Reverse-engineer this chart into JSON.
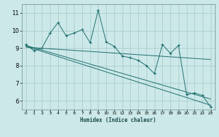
{
  "xlabel": "Humidex (Indice chaleur)",
  "bg_color": "#cce8e8",
  "grid_color": "#aacccc",
  "line_color": "#1a6b6b",
  "xlim": [
    -0.5,
    23.5
  ],
  "ylim": [
    5.5,
    11.5
  ],
  "xticks": [
    0,
    1,
    2,
    3,
    4,
    5,
    6,
    7,
    8,
    9,
    10,
    11,
    12,
    13,
    14,
    15,
    16,
    17,
    18,
    19,
    20,
    21,
    22,
    23
  ],
  "yticks": [
    6,
    7,
    8,
    9,
    10,
    11
  ],
  "series1_x": [
    0,
    1,
    2,
    3,
    4,
    5,
    6,
    7,
    8,
    9,
    10,
    11,
    12,
    13,
    14,
    15,
    16,
    17,
    18,
    19,
    20,
    21,
    22,
    23
  ],
  "series1_y": [
    9.2,
    8.85,
    9.0,
    9.85,
    10.45,
    9.7,
    9.85,
    10.05,
    9.3,
    11.15,
    9.35,
    9.1,
    8.55,
    8.45,
    8.3,
    8.0,
    7.55,
    9.2,
    8.7,
    9.15,
    6.35,
    6.45,
    6.3,
    5.65
  ],
  "trend1_x": [
    0,
    23
  ],
  "trend1_y": [
    9.15,
    6.1
  ],
  "trend2_x": [
    0,
    23
  ],
  "trend2_y": [
    9.1,
    5.75
  ],
  "trend3_x": [
    0,
    23
  ],
  "trend3_y": [
    9.05,
    8.35
  ]
}
